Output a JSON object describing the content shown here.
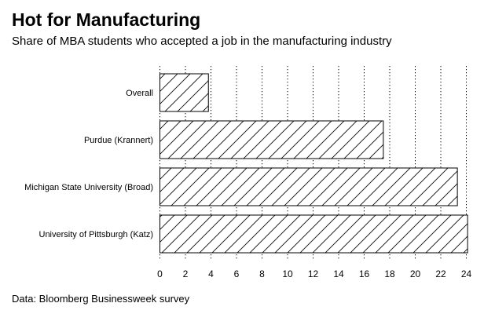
{
  "title": "Hot for Manufacturing",
  "subtitle": "Share of MBA students who accepted a job in the manufacturing industry",
  "source": "Data: Bloomberg Businessweek survey",
  "chart_data": {
    "type": "bar",
    "orientation": "horizontal",
    "title": "Hot for Manufacturing",
    "subtitle": "Share of MBA students who accepted a job in the manufacturing industry",
    "categories": [
      "Overall",
      "Purdue (Krannert)",
      "Michigan State University (Broad)",
      "University of Pittsburgh (Katz)"
    ],
    "values": [
      3.8,
      17.5,
      23.3,
      24.1
    ],
    "xlabel": "",
    "ylabel": "",
    "xlim": [
      0,
      24.2
    ],
    "xticks": [
      0,
      2,
      4,
      6,
      8,
      10,
      12,
      14,
      16,
      18,
      20,
      22,
      24
    ],
    "grid": "vertical dotted",
    "fill": "diagonal hatch",
    "colors": {
      "bar_fill": "#ffffff",
      "bar_stroke": "#000000",
      "grid": "#000000"
    }
  }
}
